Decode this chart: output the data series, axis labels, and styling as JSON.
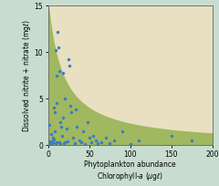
{
  "xlabel_line1": "Phytoplankton abundance",
  "xlabel_line2": "Chlorophyll-\\textit{a} (μgℓ)",
  "ylabel": "Dissolved nitrite + nitrate (mgℓ)",
  "xlim": [
    0,
    200
  ],
  "ylim": [
    0,
    15
  ],
  "xticks": [
    0,
    50,
    100,
    150,
    200
  ],
  "yticks": [
    0,
    5,
    10,
    15
  ],
  "outer_bg_color": "#c8ddd0",
  "plot_bg_color": "#e8e0c0",
  "curve_fill_color": "#a0b860",
  "dot_color": "#3a7cc0",
  "dot_size": 6,
  "scatter_x": [
    1,
    2,
    2,
    3,
    4,
    4,
    5,
    5,
    6,
    6,
    7,
    7,
    8,
    8,
    9,
    9,
    10,
    10,
    10,
    11,
    12,
    13,
    14,
    15,
    15,
    16,
    17,
    18,
    18,
    19,
    20,
    20,
    22,
    23,
    25,
    26,
    27,
    28,
    30,
    32,
    33,
    35,
    38,
    40,
    42,
    45,
    48,
    50,
    52,
    55,
    58,
    60,
    65,
    70,
    75,
    80,
    90,
    100,
    110,
    150,
    175
  ],
  "scatter_y": [
    2.2,
    0.2,
    0.4,
    0.3,
    0.1,
    1.2,
    0.4,
    0.2,
    0.8,
    0.3,
    0.6,
    4.0,
    3.5,
    1.5,
    0.2,
    10.2,
    7.5,
    4.5,
    0.3,
    12.2,
    10.5,
    8.0,
    0.3,
    0.1,
    2.5,
    2.0,
    1.0,
    7.8,
    3.0,
    0.2,
    0.3,
    5.0,
    1.8,
    0.4,
    9.2,
    8.5,
    4.2,
    3.5,
    0.8,
    0.2,
    3.8,
    2.0,
    0.5,
    0.3,
    1.5,
    0.1,
    2.5,
    0.8,
    0.3,
    1.0,
    0.5,
    0.2,
    0.3,
    0.8,
    0.2,
    0.5,
    1.5,
    0.1,
    0.5,
    1.0,
    0.5
  ],
  "curve_k": 18.0,
  "curve_max_y": 15.0
}
